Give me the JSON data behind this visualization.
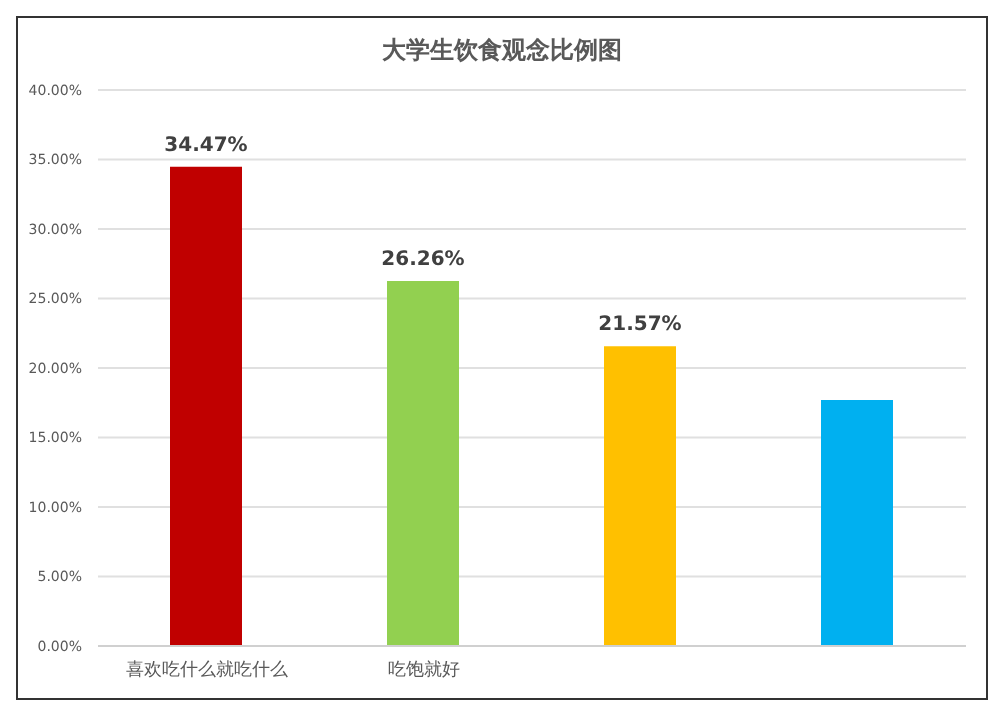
{
  "chart_data": {
    "type": "bar",
    "title": "大学生饮食观念比例图",
    "categories": [
      "喜欢吃什么就吃什么",
      "吃饱就好",
      null,
      null
    ],
    "values": [
      34.47,
      26.26,
      21.57,
      17.7
    ],
    "colors": [
      "#c00000",
      "#92d050",
      "#ffc000",
      "#00b0f0"
    ],
    "value_labels": [
      "34.47%",
      "26.26%",
      "21.57%",
      null
    ],
    "ylim": [
      0,
      40
    ],
    "yticks": [
      {
        "value": 0,
        "label": "0.00%"
      },
      {
        "value": 5,
        "label": "5.00%"
      },
      {
        "value": 10,
        "label": "10.00%"
      },
      {
        "value": 15,
        "label": "15.00%"
      },
      {
        "value": 20,
        "label": "20.00%"
      },
      {
        "value": 25,
        "label": "25.00%"
      },
      {
        "value": 30,
        "label": "30.00%"
      },
      {
        "value": 35,
        "label": "35.00%"
      },
      {
        "value": 40,
        "label": "40.00%"
      }
    ],
    "grid": "y"
  }
}
